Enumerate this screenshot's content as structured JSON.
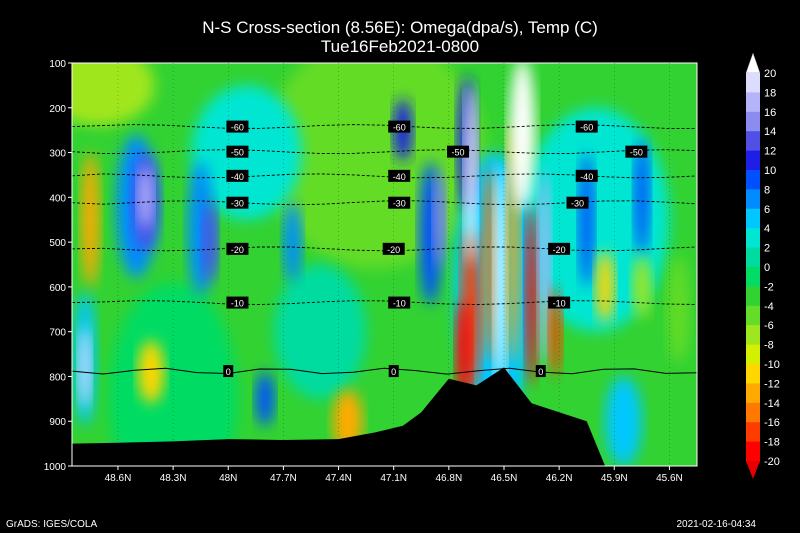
{
  "title": "N-S Cross-section (8.56E): Omega(dpa/s), Temp (C)",
  "subtitle": "Tue16Feb2021-0800",
  "footer_left": "GrADS: IGES/COLA",
  "footer_right": "2021-02-16-04:34",
  "chart_data": {
    "type": "heatmap",
    "title": "N-S Cross-section (8.56E): Omega(dpa/s), Temp (C)",
    "subtitle": "Tue16Feb2021-0800",
    "y_axis": {
      "label": "",
      "ticks": [
        100,
        200,
        300,
        400,
        500,
        600,
        700,
        800,
        900,
        1000
      ],
      "range": [
        1000,
        100
      ],
      "scale": "pressure (hPa), inverted"
    },
    "x_axis": {
      "label": "",
      "tick_labels": [
        "48.6N",
        "48.3N",
        "48N",
        "47.7N",
        "47.4N",
        "47.1N",
        "46.8N",
        "46.5N",
        "46.2N",
        "45.9N",
        "45.6N"
      ],
      "tick_values": [
        48.6,
        48.3,
        48.0,
        47.7,
        47.4,
        47.1,
        46.8,
        46.5,
        46.2,
        45.9,
        45.6
      ],
      "range": [
        48.85,
        45.45
      ]
    },
    "colorbar": {
      "variable": "Omega(dpa/s)",
      "levels": [
        20,
        18,
        16,
        14,
        12,
        10,
        8,
        6,
        4,
        2,
        0,
        -2,
        -4,
        -6,
        -8,
        -10,
        -12,
        -14,
        -16,
        -18,
        -20
      ],
      "colors": [
        "#ffffff",
        "#dcdcff",
        "#b4b4fa",
        "#8c8cf0",
        "#5050e6",
        "#1e1ee6",
        "#0050ff",
        "#008cff",
        "#00c8ff",
        "#00e6d2",
        "#00dca0",
        "#00dc64",
        "#32d232",
        "#64dc28",
        "#a0e61e",
        "#d2f000",
        "#ffd700",
        "#ffaa00",
        "#ff7800",
        "#ff3c00",
        "#ff0000",
        "#e60000"
      ]
    },
    "temperature_contours_C": [
      {
        "value": -60,
        "pressure": 242,
        "labels_at": [
          47.95,
          47.07,
          46.05
        ]
      },
      {
        "value": -50,
        "pressure": 298,
        "labels_at": [
          47.95,
          46.75,
          45.78
        ]
      },
      {
        "value": -40,
        "pressure": 352,
        "labels_at": [
          47.95,
          47.07,
          46.05
        ]
      },
      {
        "value": -30,
        "pressure": 412,
        "labels_at": [
          47.95,
          47.07,
          46.1
        ]
      },
      {
        "value": -20,
        "pressure": 515,
        "labels_at": [
          47.95,
          47.1,
          46.2
        ]
      },
      {
        "value": -10,
        "pressure": 635,
        "labels_at": [
          47.95,
          47.07,
          46.2
        ]
      },
      {
        "value": 0,
        "pressure": 788,
        "labels_at": [
          48.0,
          47.1,
          46.3
        ]
      }
    ],
    "terrain_surface_pressure": [
      {
        "lat": 48.85,
        "p": 950
      },
      {
        "lat": 48.6,
        "p": 948
      },
      {
        "lat": 48.3,
        "p": 945
      },
      {
        "lat": 48.0,
        "p": 940
      },
      {
        "lat": 47.7,
        "p": 942
      },
      {
        "lat": 47.4,
        "p": 940
      },
      {
        "lat": 47.2,
        "p": 925
      },
      {
        "lat": 47.05,
        "p": 910
      },
      {
        "lat": 46.95,
        "p": 880
      },
      {
        "lat": 46.8,
        "p": 805
      },
      {
        "lat": 46.65,
        "p": 820
      },
      {
        "lat": 46.5,
        "p": 780
      },
      {
        "lat": 46.35,
        "p": 860
      },
      {
        "lat": 46.2,
        "p": 880
      },
      {
        "lat": 46.05,
        "p": 900
      },
      {
        "lat": 45.95,
        "p": 1000
      },
      {
        "lat": 45.6,
        "p": 1000
      },
      {
        "lat": 45.45,
        "p": 1010
      }
    ]
  }
}
